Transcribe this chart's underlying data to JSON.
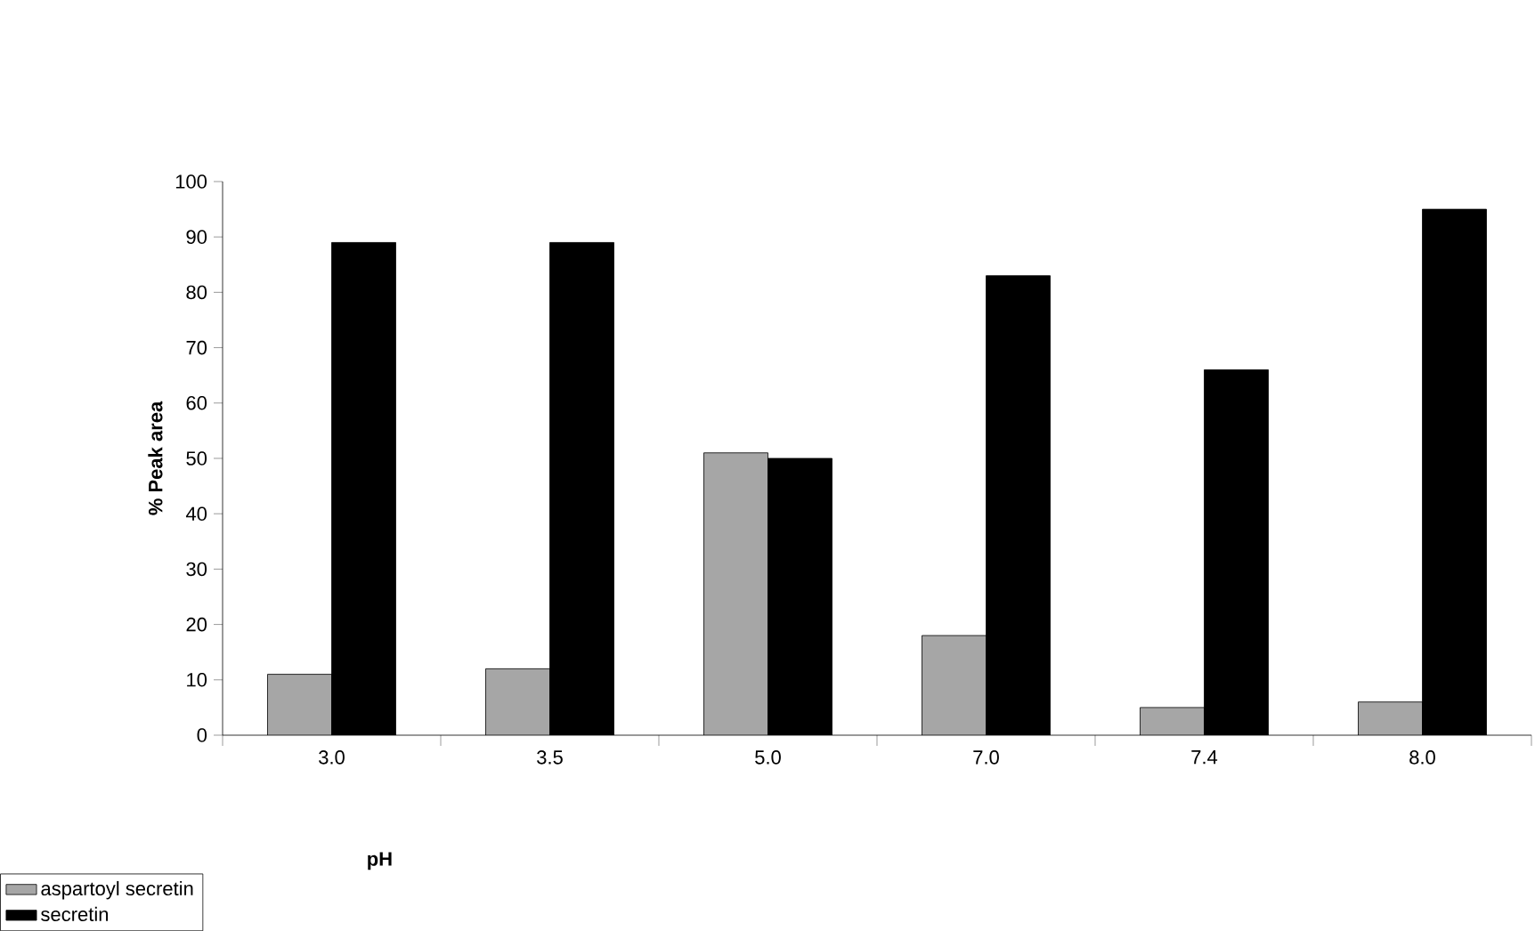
{
  "chart_data": {
    "type": "bar",
    "xlabel": "pH",
    "ylabel": "% Peak area",
    "categories": [
      "3.0",
      "3.5",
      "5.0",
      "7.0",
      "7.4",
      "8.0"
    ],
    "series": [
      {
        "name": "aspartoyl secretin",
        "color": "#a6a6a6",
        "values": [
          11,
          12,
          51,
          18,
          5,
          6
        ]
      },
      {
        "name": "secretin",
        "color": "#000000",
        "values": [
          89,
          89,
          50,
          83,
          66,
          95
        ]
      }
    ],
    "ylim": [
      0,
      100
    ],
    "yticks": [
      0,
      10,
      20,
      30,
      40,
      50,
      60,
      70,
      80,
      90,
      100
    ],
    "legend": "bottom left"
  }
}
